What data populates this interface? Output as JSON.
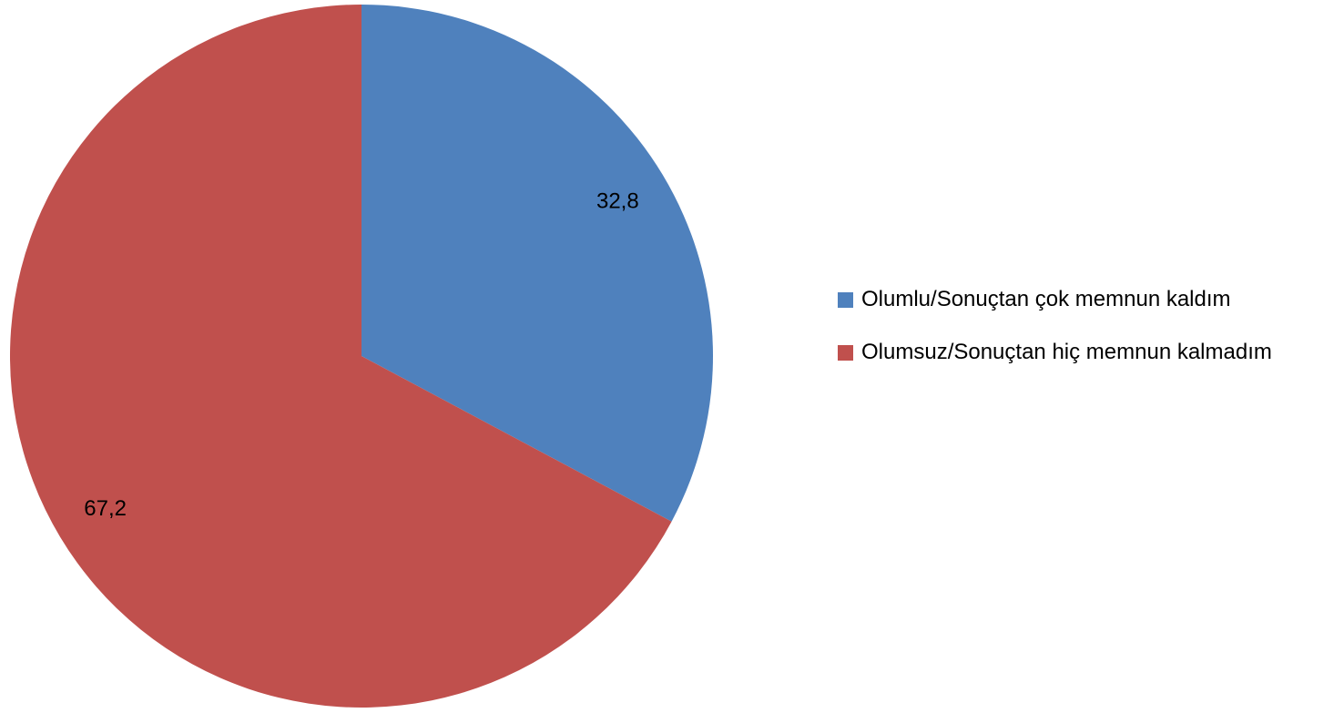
{
  "chart_data": {
    "type": "pie",
    "categories": [
      "Olumlu/Sonuçtan çok memnun kaldım",
      "Olumsuz/Sonuçtan hiç memnun kalmadım"
    ],
    "values": [
      32.8,
      67.2
    ],
    "value_labels": [
      "32,8",
      "67,2"
    ],
    "colors": [
      "#4f81bd",
      "#c0504d"
    ],
    "legend": "right"
  }
}
